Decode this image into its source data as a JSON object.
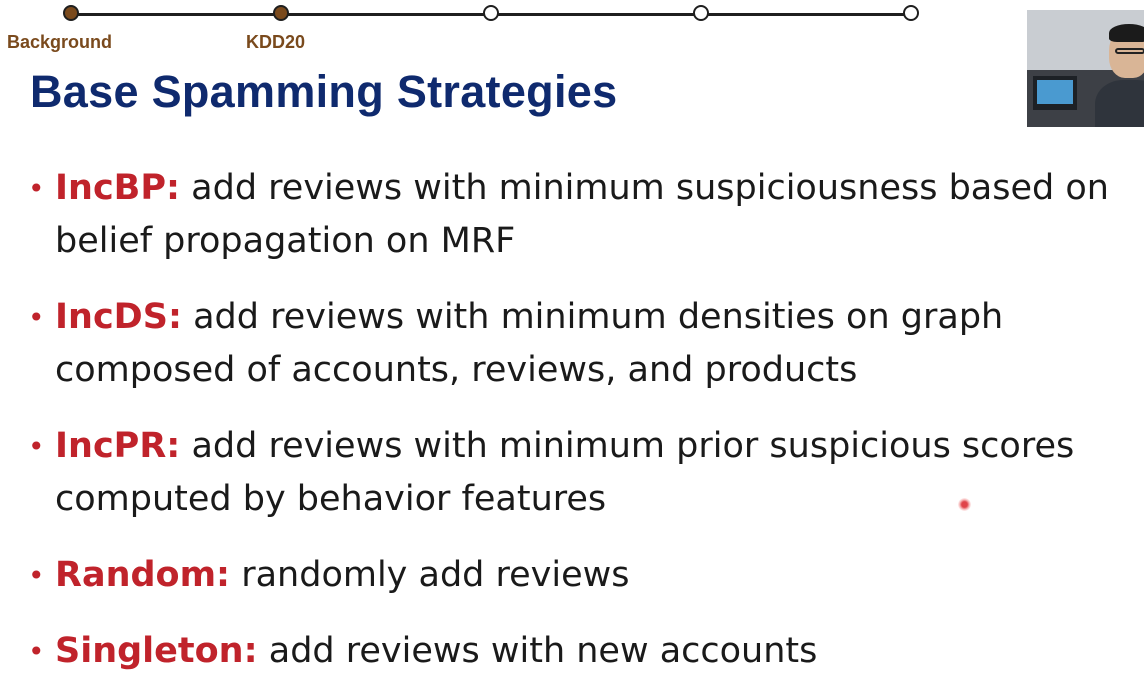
{
  "navigation": {
    "steps": [
      {
        "label": "Background",
        "completed": true
      },
      {
        "label": "KDD20",
        "completed": true
      },
      {
        "label": "",
        "completed": false
      },
      {
        "label": "",
        "completed": false
      },
      {
        "label": "",
        "completed": false
      }
    ]
  },
  "slide": {
    "title": "Base Spamming Strategies",
    "bullets": [
      {
        "term": "IncBP:",
        "line1": "add reviews with minimum suspiciousness based on",
        "line2": "belief propagation on MRF"
      },
      {
        "term": "IncDS:",
        "line1": "add reviews with minimum densities on graph",
        "line2": "composed of accounts, reviews, and products"
      },
      {
        "term": "IncPR:",
        "line1": "add reviews with minimum prior suspicious scores",
        "line2": "computed by behavior features"
      },
      {
        "term": "Random:",
        "line1": "randomly add reviews",
        "line2": ""
      },
      {
        "term": "Singleton:",
        "line1": "add reviews with new accounts",
        "line2": ""
      }
    ]
  },
  "colors": {
    "title": "#0f2a6e",
    "term": "#c0232b",
    "nav_completed": "#7a4a1d"
  },
  "icons": {
    "bullet": "bullet-dot-icon",
    "pointer": "laser-pointer-icon"
  }
}
